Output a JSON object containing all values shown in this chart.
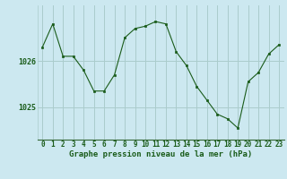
{
  "x": [
    0,
    1,
    2,
    3,
    4,
    5,
    6,
    7,
    8,
    9,
    10,
    11,
    12,
    13,
    14,
    15,
    16,
    17,
    18,
    19,
    20,
    21,
    22,
    23
  ],
  "y": [
    1026.3,
    1026.8,
    1026.1,
    1026.1,
    1025.8,
    1025.35,
    1025.35,
    1025.7,
    1026.5,
    1026.7,
    1026.75,
    1026.85,
    1026.8,
    1026.2,
    1025.9,
    1025.45,
    1025.15,
    1024.85,
    1024.75,
    1024.55,
    1025.55,
    1025.75,
    1026.15,
    1026.35
  ],
  "bg_color": "#cce8f0",
  "line_color": "#1a5c1a",
  "marker_color": "#1a5c1a",
  "grid_color": "#aacccc",
  "axis_label_color": "#1a5c1a",
  "tick_label_color": "#1a5c1a",
  "xlabel": "Graphe pression niveau de la mer (hPa)",
  "xlim": [
    -0.5,
    23.5
  ],
  "ylim": [
    1024.3,
    1027.2
  ],
  "label_fontsize": 6.5,
  "tick_fontsize": 6.0
}
